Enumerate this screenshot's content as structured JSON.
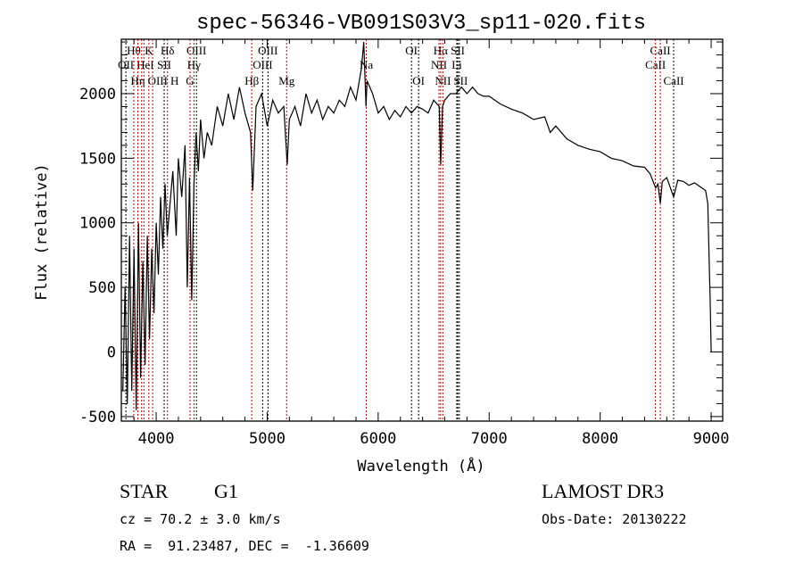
{
  "chart_data": {
    "type": "line",
    "title": "spec-56346-VB091S03V3_sp11-020.fits",
    "xlabel": "Wavelength (Å)",
    "ylabel": "Flux (relative)",
    "xlim": [
      3686,
      9104
    ],
    "ylim": [
      -535,
      2421
    ],
    "xticks": [
      4000,
      5000,
      6000,
      7000,
      8000,
      9000
    ],
    "yticks": [
      -500,
      0,
      500,
      1000,
      1500,
      2000
    ],
    "grid": false,
    "spectrum": {
      "wavelength": [
        3700,
        3720,
        3740,
        3760,
        3780,
        3800,
        3820,
        3840,
        3860,
        3880,
        3900,
        3920,
        3940,
        3960,
        3980,
        4000,
        4020,
        4040,
        4060,
        4080,
        4100,
        4120,
        4150,
        4180,
        4200,
        4230,
        4260,
        4280,
        4300,
        4320,
        4340,
        4360,
        4380,
        4400,
        4430,
        4460,
        4500,
        4550,
        4600,
        4650,
        4700,
        4750,
        4800,
        4850,
        4870,
        4900,
        4950,
        5000,
        5050,
        5100,
        5150,
        5180,
        5200,
        5250,
        5300,
        5350,
        5400,
        5450,
        5500,
        5550,
        5600,
        5650,
        5700,
        5750,
        5800,
        5850,
        5870,
        5890,
        5900,
        5950,
        6000,
        6050,
        6100,
        6150,
        6200,
        6250,
        6300,
        6350,
        6400,
        6450,
        6500,
        6550,
        6563,
        6580,
        6600,
        6650,
        6700,
        6750,
        6800,
        6850,
        6900,
        6950,
        7000,
        7100,
        7200,
        7300,
        7400,
        7500,
        7550,
        7600,
        7700,
        7800,
        7900,
        8000,
        8100,
        8200,
        8300,
        8400,
        8450,
        8500,
        8520,
        8542,
        8560,
        8600,
        8662,
        8700,
        8750,
        8800,
        8850,
        8900,
        8950,
        8970,
        8985,
        8990,
        9000
      ],
      "flux": [
        -300,
        500,
        -400,
        900,
        -300,
        800,
        -450,
        1000,
        -200,
        700,
        -100,
        900,
        100,
        800,
        300,
        1000,
        600,
        1200,
        800,
        1300,
        900,
        1100,
        1400,
        900,
        1500,
        1200,
        1600,
        500,
        1350,
        400,
        1300,
        1700,
        1400,
        1800,
        1500,
        1700,
        1600,
        1900,
        1750,
        2000,
        1800,
        2050,
        1850,
        1700,
        1250,
        1900,
        2000,
        1750,
        1950,
        1850,
        1900,
        1450,
        1800,
        1900,
        1750,
        2000,
        1850,
        1950,
        1800,
        1900,
        1850,
        1950,
        1900,
        2050,
        1950,
        2200,
        2400,
        1900,
        2100,
        2000,
        1850,
        1900,
        1800,
        1870,
        1820,
        1900,
        1850,
        1900,
        1880,
        1850,
        1950,
        1900,
        1450,
        1900,
        1950,
        2000,
        2000,
        2050,
        2000,
        2050,
        2000,
        1980,
        1980,
        1920,
        1880,
        1850,
        1800,
        1820,
        1700,
        1750,
        1650,
        1600,
        1570,
        1550,
        1500,
        1480,
        1440,
        1430,
        1380,
        1270,
        1300,
        1150,
        1320,
        1350,
        1200,
        1330,
        1320,
        1290,
        1310,
        1280,
        1250,
        1150,
        600,
        450,
        0
      ]
    },
    "lines": [
      {
        "label": "Hθ",
        "wave": 3798,
        "row": 0,
        "color": "#c00000"
      },
      {
        "label": "K",
        "wave": 3934,
        "row": 0,
        "color": "#c00000"
      },
      {
        "label": "Hδ",
        "wave": 4102,
        "row": 0,
        "color": "#c00000"
      },
      {
        "label": "OIII",
        "wave": 4363,
        "row": 0,
        "color": "#000000"
      },
      {
        "label": "OIII",
        "wave": 5007,
        "row": 0,
        "color": "#000000"
      },
      {
        "label": "OI",
        "wave": 6300,
        "row": 0,
        "color": "#000000"
      },
      {
        "label": "Hα",
        "wave": 6563,
        "row": 0,
        "color": "#c00000"
      },
      {
        "label": "SII",
        "wave": 6717,
        "row": 0,
        "color": "#000000"
      },
      {
        "label": "CaII",
        "wave": 8542,
        "row": 0,
        "color": "#c00000"
      },
      {
        "label": "OII",
        "wave": 3727,
        "row": 1,
        "color": "#000000"
      },
      {
        "label": "HeI",
        "wave": 3889,
        "row": 1,
        "color": "#c00000"
      },
      {
        "label": "SII",
        "wave": 4072,
        "row": 1,
        "color": "#000000"
      },
      {
        "label": "Hγ",
        "wave": 4340,
        "row": 1,
        "color": "#c00000"
      },
      {
        "label": "OIII",
        "wave": 4959,
        "row": 1,
        "color": "#000000"
      },
      {
        "label": "Na",
        "wave": 5893,
        "row": 1,
        "color": "#c00000"
      },
      {
        "label": "NII",
        "wave": 6548,
        "row": 1,
        "color": "#c00000"
      },
      {
        "label": "Li",
        "wave": 6708,
        "row": 1,
        "color": "#000000"
      },
      {
        "label": "CaII",
        "wave": 8498,
        "row": 1,
        "color": "#c00000"
      },
      {
        "label": "OIII",
        "wave": 3869,
        "row": 2,
        "color": "#c00000"
      },
      {
        "label": "Hη",
        "wave": 3835,
        "row": 2,
        "color": "#c00000"
      },
      {
        "label": "H",
        "wave": 3968,
        "row": 2,
        "color": "#c00000"
      },
      {
        "label": "G",
        "wave": 4305,
        "row": 2,
        "color": "#c00000"
      },
      {
        "label": "Hβ",
        "wave": 4861,
        "row": 2,
        "color": "#c00000"
      },
      {
        "label": "Mg",
        "wave": 5175,
        "row": 2,
        "color": "#c00000"
      },
      {
        "label": "OI",
        "wave": 6364,
        "row": 2,
        "color": "#000000"
      },
      {
        "label": "NII",
        "wave": 6583,
        "row": 2,
        "color": "#c00000"
      },
      {
        "label": "SII",
        "wave": 6731,
        "row": 2,
        "color": "#000000"
      },
      {
        "label": "CaII",
        "wave": 8662,
        "row": 2,
        "color": "#000000"
      }
    ]
  },
  "info": {
    "object_class": "STAR",
    "subclass": "G1",
    "survey": "LAMOST DR3",
    "redshift": "cz = 70.2 ± 3.0 km/s",
    "obs_date": "Obs-Date: 20130222",
    "coords": "RA =  91.23487, DEC =  -1.36609"
  }
}
